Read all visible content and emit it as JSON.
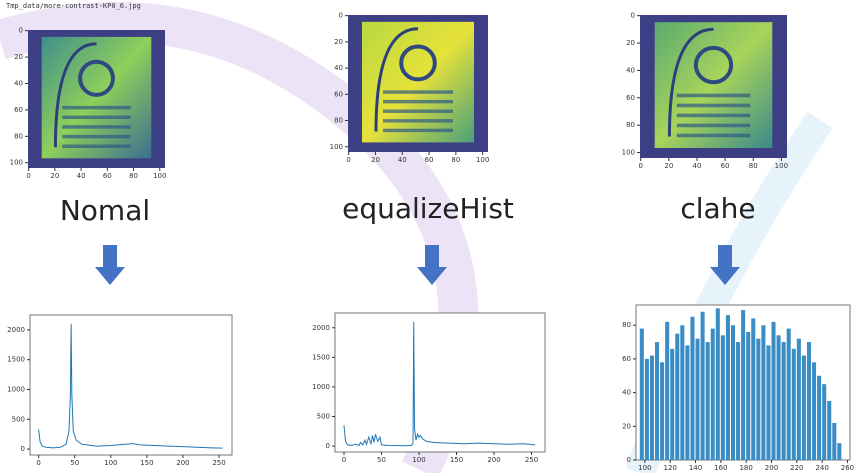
{
  "header": {
    "filename": "Tmp_data/more-contrast-KP0_6.jpg"
  },
  "images": [
    {
      "label": "Nomal",
      "xlim": [
        -0.5,
        104
      ],
      "ylim": [
        -0.5,
        104
      ],
      "xticks": [
        0,
        20,
        40,
        60,
        80,
        100
      ],
      "yticks": [
        0,
        20,
        40,
        60,
        80,
        100
      ]
    },
    {
      "label": "equalizeHist",
      "xlim": [
        -0.5,
        104
      ],
      "ylim": [
        -0.5,
        104
      ],
      "xticks": [
        0,
        20,
        40,
        60,
        80,
        100
      ],
      "yticks": [
        0,
        20,
        40,
        60,
        80,
        100
      ]
    },
    {
      "label": "clahe",
      "xlim": [
        -0.5,
        104
      ],
      "ylim": [
        -0.5,
        104
      ],
      "xticks": [
        0,
        20,
        40,
        60,
        80,
        100
      ],
      "yticks": [
        0,
        20,
        40,
        60,
        80,
        100
      ]
    }
  ],
  "chart_data": [
    {
      "type": "line",
      "color": "#1f77b4",
      "x": [
        0,
        2,
        5,
        10,
        20,
        30,
        38,
        42,
        44,
        45,
        46,
        48,
        52,
        60,
        80,
        100,
        120,
        130,
        140,
        160,
        180,
        200,
        220,
        240,
        255
      ],
      "values": [
        330,
        120,
        50,
        30,
        20,
        30,
        80,
        300,
        900,
        2100,
        900,
        300,
        150,
        80,
        50,
        60,
        80,
        90,
        70,
        60,
        50,
        40,
        30,
        20,
        15
      ],
      "xlim": [
        -12,
        268
      ],
      "ylim": [
        -100,
        2250
      ],
      "xticks": [
        0,
        50,
        100,
        150,
        200,
        250
      ],
      "yticks": [
        0,
        500,
        1000,
        1500,
        2000
      ]
    },
    {
      "type": "line",
      "color": "#1f77b4",
      "x": [
        0,
        2,
        5,
        10,
        15,
        20,
        22,
        25,
        28,
        30,
        33,
        36,
        38,
        40,
        42,
        45,
        48,
        50,
        60,
        80,
        90,
        92,
        93,
        94,
        96,
        98,
        100,
        102,
        105,
        110,
        120,
        140,
        160,
        180,
        200,
        220,
        240,
        255
      ],
      "values": [
        350,
        80,
        20,
        10,
        30,
        10,
        60,
        20,
        100,
        30,
        150,
        40,
        180,
        60,
        200,
        80,
        150,
        20,
        10,
        5,
        10,
        50,
        2100,
        300,
        100,
        200,
        150,
        180,
        120,
        80,
        60,
        50,
        40,
        50,
        40,
        30,
        40,
        20
      ],
      "xlim": [
        -12,
        268
      ],
      "ylim": [
        -100,
        2250
      ],
      "xticks": [
        0,
        50,
        100,
        150,
        200,
        250
      ],
      "yticks": [
        0,
        500,
        1000,
        1500,
        2000
      ]
    },
    {
      "type": "histogram",
      "color": "#3a8cc4",
      "bins": [
        96,
        100,
        104,
        108,
        112,
        116,
        120,
        124,
        128,
        132,
        136,
        140,
        144,
        148,
        152,
        156,
        160,
        164,
        168,
        172,
        176,
        180,
        184,
        188,
        192,
        196,
        200,
        204,
        208,
        212,
        216,
        220,
        224,
        228,
        232,
        236,
        240,
        244,
        248,
        252,
        256
      ],
      "values": [
        78,
        60,
        62,
        70,
        58,
        82,
        66,
        75,
        80,
        68,
        85,
        72,
        88,
        70,
        78,
        90,
        74,
        86,
        80,
        70,
        89,
        76,
        84,
        72,
        80,
        68,
        82,
        74,
        70,
        78,
        66,
        72,
        62,
        70,
        58,
        50,
        45,
        35,
        22,
        10
      ],
      "xlim": [
        93,
        262
      ],
      "ylim": [
        0,
        92
      ],
      "xticks": [
        100,
        120,
        140,
        160,
        180,
        200,
        220,
        240,
        260
      ],
      "yticks": [
        0,
        20,
        40,
        60,
        80
      ]
    }
  ]
}
